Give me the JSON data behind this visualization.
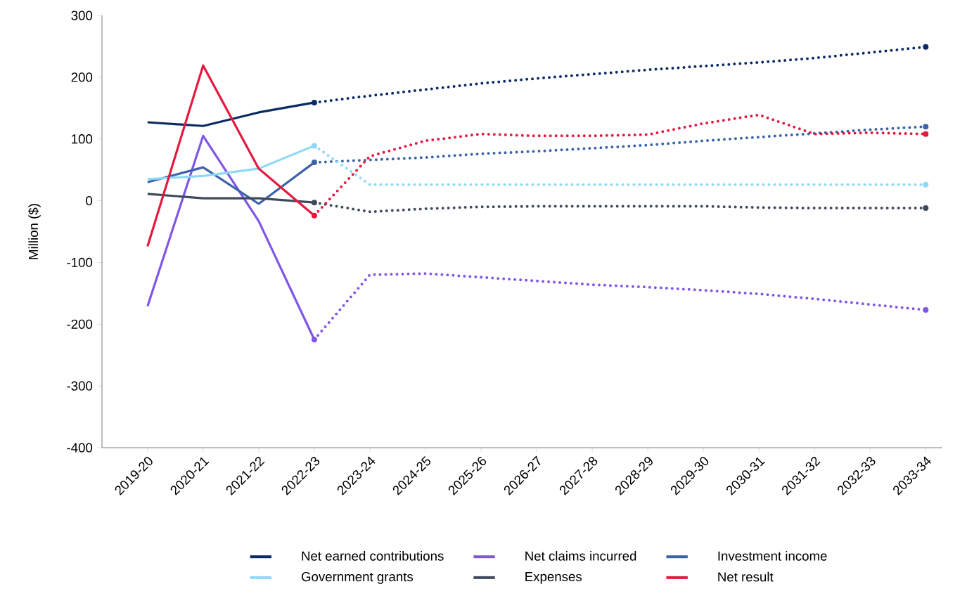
{
  "chart_data": {
    "type": "line",
    "ylabel": "Million ($)",
    "categories": [
      "2019-20",
      "2020-21",
      "2021-22",
      "2022-23",
      "2023-24",
      "2024-25",
      "2025-26",
      "2026-27",
      "2027-28",
      "2028-29",
      "2029-30",
      "2030-31",
      "2031-32",
      "2032-33",
      "2033-34"
    ],
    "ylim": [
      -400,
      300
    ],
    "yticks": [
      -400,
      -300,
      -200,
      -100,
      0,
      100,
      200,
      300
    ],
    "legend": "bottom",
    "grid": false,
    "series": [
      {
        "name": "Net earned contributions",
        "color": "#0b2a63",
        "line_style": "solid",
        "values": [
          127,
          121,
          143,
          159,
          null,
          null,
          null,
          null,
          null,
          null,
          null,
          null,
          null,
          null,
          null
        ]
      },
      {
        "name": "Net claims incurred",
        "color": "#7f56e8",
        "line_style": "solid",
        "values": [
          -171,
          105,
          -33,
          -225,
          null,
          null,
          null,
          null,
          null,
          null,
          null,
          null,
          null,
          null,
          null
        ]
      },
      {
        "name": "Investment income",
        "color": "#3b63a8",
        "line_style": "solid",
        "values": [
          30,
          54,
          -5,
          62,
          null,
          null,
          null,
          null,
          null,
          null,
          null,
          null,
          null,
          null,
          null
        ]
      },
      {
        "name": "Government grants",
        "color": "#8fd8f7",
        "line_style": "solid",
        "values": [
          35,
          40,
          52,
          89,
          null,
          null,
          null,
          null,
          null,
          null,
          null,
          null,
          null,
          null,
          null
        ]
      },
      {
        "name": "Expenses",
        "color": "#3e4a5c",
        "line_style": "solid",
        "values": [
          11,
          4,
          4,
          -3,
          null,
          null,
          null,
          null,
          null,
          null,
          null,
          null,
          null,
          null,
          null
        ]
      },
      {
        "name": "Net result",
        "color": "#e4193f",
        "line_style": "solid",
        "values": [
          -74,
          219,
          52,
          -24,
          null,
          null,
          null,
          null,
          null,
          null,
          null,
          null,
          null,
          null,
          null
        ]
      },
      {
        "color": "#0b2a63",
        "line_style": "dotted",
        "values": [
          null,
          null,
          null,
          159,
          170,
          180,
          190,
          198,
          205,
          212,
          218,
          224,
          231,
          240,
          249
        ]
      },
      {
        "color": "#7f56e8",
        "line_style": "dotted",
        "values": [
          null,
          null,
          null,
          -225,
          -120,
          -118,
          -124,
          -130,
          -136,
          -140,
          -145,
          -151,
          -159,
          -168,
          -177
        ]
      },
      {
        "color": "#3b63a8",
        "line_style": "dotted",
        "values": [
          null,
          null,
          null,
          62,
          66,
          70,
          76,
          80,
          85,
          90,
          97,
          103,
          109,
          115,
          120
        ]
      },
      {
        "color": "#8fd8f7",
        "line_style": "dotted",
        "values": [
          null,
          null,
          null,
          89,
          26,
          26,
          26,
          26,
          26,
          26,
          26,
          26,
          26,
          26,
          26
        ]
      },
      {
        "color": "#3e4a5c",
        "line_style": "dotted",
        "values": [
          null,
          null,
          null,
          -3,
          -18,
          -13,
          -10,
          -9,
          -9,
          -9,
          -9,
          -11,
          -12,
          -12,
          -12
        ]
      },
      {
        "color": "#e4193f",
        "line_style": "dotted",
        "values": [
          null,
          null,
          null,
          -24,
          72,
          97,
          108,
          105,
          105,
          107,
          125,
          139,
          108,
          110,
          108
        ]
      }
    ]
  }
}
